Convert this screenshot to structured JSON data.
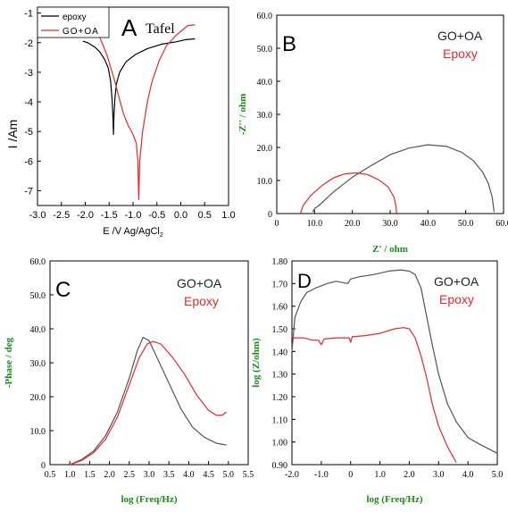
{
  "chart_data": [
    {
      "panel": "A",
      "type": "line",
      "title": "Tafel",
      "xlabel": "E /V Ag/AgCl",
      "xlabel_sub": "2",
      "ylabel": "I /Am",
      "xlim": [
        -3.0,
        1.0
      ],
      "ylim": [
        -7.5,
        -0.8
      ],
      "xticks": [
        "-3.0",
        "-2.5",
        "-2.0",
        "-1.5",
        "-1.0",
        "-0.5",
        "0.0",
        "0.5",
        "1.0"
      ],
      "yticks": [
        "-1",
        "-2",
        "-3",
        "-4",
        "-5",
        "-6",
        "-7"
      ],
      "legend": "top-left",
      "series": [
        {
          "name": "epoxy",
          "color": "#000000",
          "points": [
            [
              -2.05,
              -1.95
            ],
            [
              -1.95,
              -2.0
            ],
            [
              -1.8,
              -2.15
            ],
            [
              -1.7,
              -2.3
            ],
            [
              -1.6,
              -2.55
            ],
            [
              -1.52,
              -2.85
            ],
            [
              -1.47,
              -3.3
            ],
            [
              -1.44,
              -3.9
            ],
            [
              -1.42,
              -4.5
            ],
            [
              -1.41,
              -5.1
            ],
            [
              -1.4,
              -4.5
            ],
            [
              -1.38,
              -3.9
            ],
            [
              -1.35,
              -3.4
            ],
            [
              -1.28,
              -3.0
            ],
            [
              -1.15,
              -2.65
            ],
            [
              -0.95,
              -2.4
            ],
            [
              -0.7,
              -2.2
            ],
            [
              -0.4,
              -2.05
            ],
            [
              -0.1,
              -1.97
            ],
            [
              0.1,
              -1.9
            ],
            [
              0.3,
              -1.87
            ]
          ]
        },
        {
          "name": "GO+OA",
          "color": "#e8282b",
          "points": [
            [
              -1.7,
              -1.8
            ],
            [
              -1.55,
              -2.4
            ],
            [
              -1.4,
              -3.2
            ],
            [
              -1.3,
              -3.8
            ],
            [
              -1.2,
              -4.4
            ],
            [
              -1.1,
              -4.8
            ],
            [
              -1.0,
              -5.1
            ],
            [
              -0.93,
              -5.4
            ],
            [
              -0.9,
              -6.0
            ],
            [
              -0.88,
              -7.3
            ],
            [
              -0.86,
              -6.0
            ],
            [
              -0.8,
              -5.0
            ],
            [
              -0.7,
              -4.0
            ],
            [
              -0.6,
              -3.3
            ],
            [
              -0.45,
              -2.6
            ],
            [
              -0.3,
              -2.1
            ],
            [
              -0.1,
              -1.75
            ],
            [
              0.05,
              -1.55
            ],
            [
              0.15,
              -1.42
            ],
            [
              0.3,
              -1.4
            ]
          ]
        }
      ]
    },
    {
      "panel": "B",
      "type": "line",
      "xlabel": "Z' / ohm",
      "ylabel": "-Z'' / ohm",
      "xlim": [
        0,
        60
      ],
      "ylim": [
        0,
        60
      ],
      "xticks": [
        "0",
        "10.0",
        "20.0",
        "30.0",
        "40.0",
        "50.0",
        "60.0"
      ],
      "yticks": [
        "0",
        "10.0",
        "20.0",
        "30.0",
        "40.0",
        "50.0",
        "60.0"
      ],
      "series": [
        {
          "name": "GO+OA",
          "color": "#555555",
          "points": [
            [
              9.5,
              0.5
            ],
            [
              10,
              1.5
            ],
            [
              11,
              2.3
            ],
            [
              15,
              6.5
            ],
            [
              20,
              11.0
            ],
            [
              25,
              14.5
            ],
            [
              30,
              17.8
            ],
            [
              35,
              19.8
            ],
            [
              40,
              20.8
            ],
            [
              45,
              20.3
            ],
            [
              49,
              18.5
            ],
            [
              52,
              16.0
            ],
            [
              54.5,
              12.5
            ],
            [
              56,
              9.0
            ],
            [
              57,
              5.0
            ],
            [
              57.5,
              0.5
            ]
          ]
        },
        {
          "name": "Epoxy",
          "color": "#e8282b",
          "points": [
            [
              6.3,
              0.2
            ],
            [
              7,
              2.5
            ],
            [
              9,
              5.5
            ],
            [
              12,
              8.5
            ],
            [
              15,
              10.8
            ],
            [
              18,
              12.0
            ],
            [
              21,
              12.3
            ],
            [
              24,
              11.8
            ],
            [
              27,
              10.2
            ],
            [
              29.5,
              8.0
            ],
            [
              31,
              5.0
            ],
            [
              31.5,
              2.5
            ],
            [
              31.7,
              0.2
            ]
          ]
        }
      ]
    },
    {
      "panel": "C",
      "type": "line",
      "xlabel": "log (Freq/Hz)",
      "ylabel": "-Phase / deg",
      "xlim": [
        0.5,
        5.5
      ],
      "ylim": [
        0,
        60
      ],
      "xticks": [
        "0.5",
        "1.0",
        "1.5",
        "2.0",
        "2.5",
        "3.0",
        "3.5",
        "4.0",
        "4.5",
        "5.0",
        "5.5"
      ],
      "yticks": [
        "0",
        "10.0",
        "20.0",
        "30.0",
        "40.0",
        "50.0",
        "60.0"
      ],
      "series": [
        {
          "name": "GO+OA",
          "color": "#555555",
          "points": [
            [
              1.0,
              0.0
            ],
            [
              1.3,
              1.5
            ],
            [
              1.6,
              4.0
            ],
            [
              1.9,
              8.5
            ],
            [
              2.2,
              15.5
            ],
            [
              2.5,
              25.5
            ],
            [
              2.7,
              33.5
            ],
            [
              2.85,
              37.5
            ],
            [
              3.0,
              36.5
            ],
            [
              3.2,
              31.5
            ],
            [
              3.5,
              24.0
            ],
            [
              3.8,
              16.5
            ],
            [
              4.1,
              11.0
            ],
            [
              4.4,
              8.0
            ],
            [
              4.7,
              6.3
            ],
            [
              4.95,
              5.8
            ]
          ]
        },
        {
          "name": "Epoxy",
          "color": "#e8282b",
          "points": [
            [
              1.0,
              0.0
            ],
            [
              1.3,
              1.2
            ],
            [
              1.6,
              3.5
            ],
            [
              1.9,
              7.5
            ],
            [
              2.2,
              14.0
            ],
            [
              2.5,
              23.5
            ],
            [
              2.75,
              31.5
            ],
            [
              2.95,
              35.5
            ],
            [
              3.1,
              36.3
            ],
            [
              3.3,
              35.5
            ],
            [
              3.6,
              31.5
            ],
            [
              3.9,
              26.5
            ],
            [
              4.2,
              20.5
            ],
            [
              4.5,
              16.0
            ],
            [
              4.7,
              14.5
            ],
            [
              4.85,
              14.6
            ],
            [
              4.95,
              15.5
            ]
          ]
        }
      ]
    },
    {
      "panel": "D",
      "type": "line",
      "xlabel": "log (Freq/Hz)",
      "ylabel": "log (Z/ohm)",
      "xlim": [
        -2.0,
        5.0
      ],
      "ylim": [
        0.9,
        1.8
      ],
      "xticks": [
        "-2.0",
        "-1.0",
        "0",
        "1.0",
        "2.0",
        "3.0",
        "4.0",
        "5.0"
      ],
      "yticks": [
        "0.90",
        "1.00",
        "1.10",
        "1.20",
        "1.30",
        "1.40",
        "1.50",
        "1.60",
        "1.70",
        "1.80"
      ],
      "series": [
        {
          "name": "GO+OA",
          "color": "#555555",
          "points": [
            [
              -2.0,
              1.4
            ],
            [
              -1.9,
              1.55
            ],
            [
              -1.7,
              1.62
            ],
            [
              -1.5,
              1.66
            ],
            [
              -1.2,
              1.68
            ],
            [
              -1.0,
              1.69
            ],
            [
              -0.8,
              1.7
            ],
            [
              -0.5,
              1.71
            ],
            [
              -0.1,
              1.7
            ],
            [
              0.0,
              1.72
            ],
            [
              0.3,
              1.73
            ],
            [
              0.8,
              1.74
            ],
            [
              1.3,
              1.755
            ],
            [
              1.7,
              1.76
            ],
            [
              2.0,
              1.755
            ],
            [
              2.2,
              1.74
            ],
            [
              2.4,
              1.68
            ],
            [
              2.6,
              1.55
            ],
            [
              2.8,
              1.42
            ],
            [
              3.0,
              1.3
            ],
            [
              3.3,
              1.17
            ],
            [
              3.6,
              1.09
            ],
            [
              4.0,
              1.02
            ],
            [
              4.4,
              0.99
            ],
            [
              5.0,
              0.95
            ]
          ]
        },
        {
          "name": "Epoxy",
          "color": "#e8282b",
          "points": [
            [
              -2.0,
              1.46
            ],
            [
              -1.6,
              1.46
            ],
            [
              -1.3,
              1.45
            ],
            [
              -1.1,
              1.45
            ],
            [
              -1.0,
              1.43
            ],
            [
              -0.9,
              1.455
            ],
            [
              -0.5,
              1.46
            ],
            [
              -0.2,
              1.46
            ],
            [
              -0.05,
              1.46
            ],
            [
              0.0,
              1.44
            ],
            [
              0.05,
              1.465
            ],
            [
              0.5,
              1.47
            ],
            [
              1.0,
              1.48
            ],
            [
              1.5,
              1.5
            ],
            [
              1.8,
              1.505
            ],
            [
              2.0,
              1.5
            ],
            [
              2.2,
              1.46
            ],
            [
              2.4,
              1.38
            ],
            [
              2.6,
              1.28
            ],
            [
              2.8,
              1.16
            ],
            [
              3.0,
              1.07
            ],
            [
              3.3,
              0.98
            ],
            [
              3.6,
              0.91
            ]
          ]
        }
      ]
    }
  ]
}
